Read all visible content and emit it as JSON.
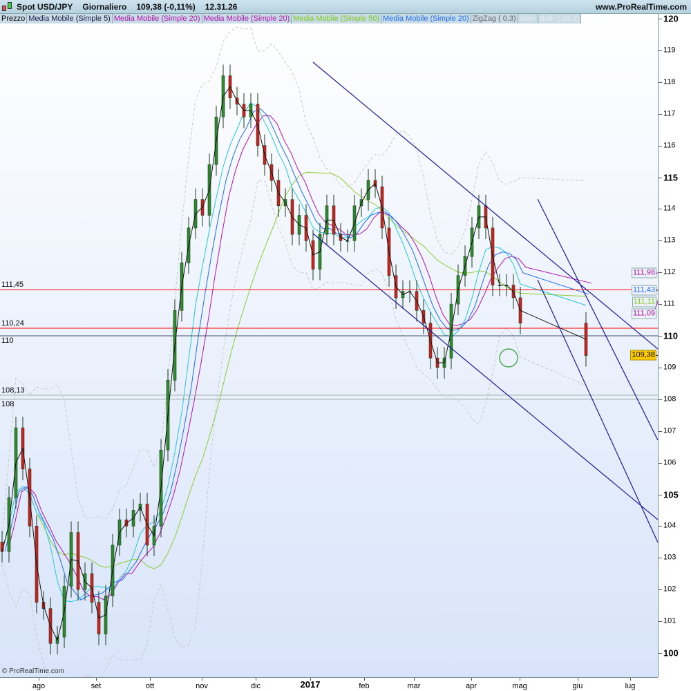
{
  "header": {
    "instrument": "Spot USD/JPY",
    "timeframe": "Giornaliero",
    "last": "109,38 (-0,11%)",
    "time": "12.31.26",
    "site": "www.ProRealTime.com"
  },
  "legend": [
    {
      "label": "Prezzo",
      "color": "#000000"
    },
    {
      "label": "Media Mobile (Simple 5)",
      "color": "#1a1a4a"
    },
    {
      "label": "Media Mobile (Simple 20)",
      "color": "#b010b0"
    },
    {
      "label": "Media Mobile (Simple 20)",
      "color": "#b010b0"
    },
    {
      "label": "Media Mobile (Simple 50)",
      "color": "#7ac818"
    },
    {
      "label": "Media Mobile (Simple 20)",
      "color": "#1a6aff"
    },
    {
      "label": "ZigZag ( 0,3)",
      "color": "#666666"
    },
    {
      "label": "Boll+",
      "color": "#e8eef2"
    },
    {
      "label": "Boll- ( 20 2)",
      "color": "#e8eef2"
    }
  ],
  "copyright": "© ProRealTime.com",
  "levels": [
    {
      "label": "111,45",
      "value": 111.45,
      "color": "#ff0000"
    },
    {
      "label": "110,24",
      "value": 110.24,
      "color": "#ff0000"
    },
    {
      "label": "110",
      "value": 110,
      "color": "#445566"
    },
    {
      "label": "108,13",
      "value": 108.13,
      "color": "#9aa8a0"
    },
    {
      "label": "108",
      "value": 108,
      "color": "#9aa8a0"
    }
  ],
  "value_tags": [
    {
      "label": "111,98",
      "value": 111.98,
      "color": "#a010a0",
      "bg": "#eef2f8"
    },
    {
      "label": "111,43",
      "value": 111.43,
      "color": "#1a6aff",
      "bg": "#eef2f8"
    },
    {
      "label": "111,11",
      "value": 111.11,
      "color": "#7ac818",
      "bg": "#eef2f8"
    },
    {
      "label": "111,09",
      "value": 111.09,
      "color": "#a010a0",
      "bg": "#eef2f8"
    },
    {
      "label": "109,38",
      "value": 109.38,
      "color": "#000000",
      "bg": "#ffcc00"
    }
  ],
  "chart_data": {
    "type": "candlestick",
    "title": "Spot USD/JPY",
    "ylim": [
      99.3,
      120.2
    ],
    "y_ticks": [
      100,
      101,
      102,
      103,
      104,
      105,
      106,
      107,
      108,
      109,
      110,
      111,
      112,
      113,
      114,
      115,
      116,
      117,
      118,
      119,
      120
    ],
    "y_ticks_bold": [
      100,
      105,
      110,
      115,
      120
    ],
    "x_ticks": [
      "ago",
      "set",
      "ott",
      "nov",
      "dic",
      "2017",
      "feb",
      "mar",
      "apr",
      "mag",
      "giu",
      "lug"
    ],
    "closes": [
      103.2,
      104.9,
      107.1,
      105.8,
      104.0,
      101.6,
      101.4,
      100.3,
      100.5,
      102.1,
      103.8,
      102.0,
      102.5,
      101.6,
      100.6,
      101.8,
      103.4,
      104.2,
      104.0,
      104.5,
      104.7,
      103.4,
      104.0,
      106.4,
      108.6,
      110.8,
      112.3,
      113.4,
      114.3,
      113.8,
      115.4,
      116.9,
      118.2,
      117.5,
      117.3,
      116.9,
      117.3,
      116.0,
      115.4,
      114.9,
      114.1,
      114.3,
      113.2,
      113.8,
      113.0,
      112.1,
      113.2,
      114.1,
      113.2,
      113.0,
      113.0,
      114.1,
      114.3,
      114.9,
      114.7,
      113.4,
      111.9,
      111.2,
      111.4,
      111.4,
      110.8,
      110.4,
      109.3,
      109.0,
      109.3,
      111.0,
      111.9,
      112.5,
      113.4,
      114.1,
      113.4,
      111.6,
      111.6,
      111.6,
      111.2,
      110.4,
      109.38
    ],
    "grid": false,
    "up_color": "#2e8b2e",
    "down_color": "#d02020"
  }
}
